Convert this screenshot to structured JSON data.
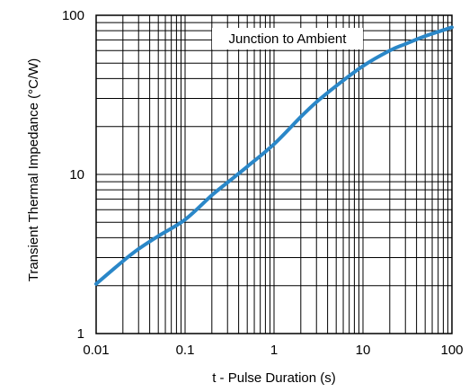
{
  "chart_data": {
    "type": "line",
    "title": "",
    "xlabel": "t - Pulse Duration (s)",
    "ylabel": "Transient Thermal Impedance (°C/W)",
    "xscale": "log",
    "yscale": "log",
    "xlim": [
      0.01,
      100
    ],
    "ylim": [
      1,
      100
    ],
    "x_tick_labels": [
      "0.01",
      "0.1",
      "1",
      "10",
      "100"
    ],
    "y_tick_labels": [
      "1",
      "10",
      "100"
    ],
    "grid": true,
    "annotation": "Junction to Ambient",
    "line_color": "#2a87c8",
    "series": [
      {
        "name": "Junction to Ambient",
        "x": [
          0.01,
          0.02,
          0.03,
          0.05,
          0.1,
          0.2,
          0.3,
          0.5,
          1,
          2,
          3,
          5,
          10,
          20,
          30,
          50,
          100
        ],
        "y": [
          2.05,
          2.85,
          3.4,
          4.1,
          5.2,
          7.4,
          8.9,
          11.2,
          15.5,
          23,
          28.5,
          36,
          48,
          60,
          66,
          74,
          84
        ]
      }
    ]
  }
}
